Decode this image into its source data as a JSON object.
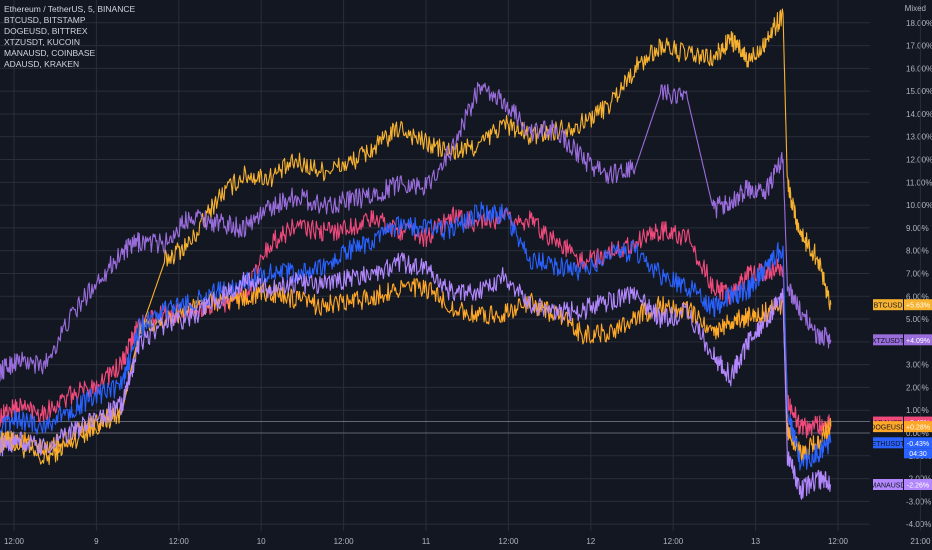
{
  "header": {
    "scale_mode": "Mixed",
    "symbols": [
      "Ethereum / TetherUS, 5, BINANCE",
      "BTCUSD, BITSTAMP",
      "DOGEUSD, BITTREX",
      "XTZUSDT, KUCOIN",
      "MANAUSD, COINBASE",
      "ADAUSD, KRAKEN"
    ]
  },
  "colors": {
    "background": "#131722",
    "grid": "#2a2e39",
    "axis_text": "#b2b5be",
    "crosshair": "#9598a1"
  },
  "chart_data": {
    "type": "line",
    "x_ticks": [
      "12:00",
      "9",
      "12:00",
      "10",
      "12:00",
      "11",
      "12:00",
      "12",
      "12:00",
      "13",
      "12:00",
      "21:00"
    ],
    "y_ticks": [
      "18.00%",
      "17.00%",
      "16.00%",
      "15.00%",
      "14.00%",
      "13.00%",
      "12.00%",
      "11.00%",
      "10.00%",
      "9.00%",
      "8.00%",
      "7.00%",
      "6.00%",
      "5.00%",
      "4.00%",
      "3.00%",
      "2.00%",
      "1.00%",
      "0.00%",
      "-1.00%",
      "-2.00%",
      "-3.00%",
      "-4.00%"
    ],
    "ylim": [
      -4.3,
      19
    ],
    "y_unit": "%",
    "grid": true,
    "series": [
      {
        "name": "BTCUSD",
        "color": "#f7b230",
        "last_label": "+5.63%",
        "x": [
          0,
          0.02,
          0.05,
          0.08,
          0.11,
          0.14,
          0.16,
          0.19,
          0.22,
          0.25,
          0.28,
          0.31,
          0.34,
          0.37,
          0.4,
          0.43,
          0.46,
          0.49,
          0.52,
          0.55,
          0.58,
          0.61,
          0.64,
          0.67,
          0.7,
          0.73,
          0.76,
          0.79,
          0.82,
          0.84,
          0.86,
          0.88,
          0.9,
          0.905,
          0.92,
          0.94,
          0.955
        ],
        "y": [
          -0.3,
          -0.5,
          -1.2,
          -0.4,
          0.3,
          0.9,
          4.3,
          7.6,
          8.4,
          10.3,
          11.3,
          11.2,
          11.9,
          11.5,
          11.8,
          12.5,
          13.4,
          12.7,
          12.3,
          12.6,
          13.6,
          13.0,
          13.3,
          13.6,
          14.4,
          16.0,
          17.0,
          16.6,
          16.4,
          17.3,
          16.3,
          17.2,
          18.4,
          11.0,
          8.7,
          7.7,
          5.63
        ]
      },
      {
        "name": "XTZUSDT",
        "color": "#9a6ddc",
        "last_label": "+4.09%",
        "x": [
          0,
          0.02,
          0.05,
          0.08,
          0.11,
          0.14,
          0.16,
          0.19,
          0.22,
          0.25,
          0.28,
          0.31,
          0.34,
          0.37,
          0.4,
          0.43,
          0.46,
          0.49,
          0.52,
          0.55,
          0.58,
          0.61,
          0.64,
          0.67,
          0.7,
          0.73,
          0.76,
          0.79,
          0.82,
          0.84,
          0.86,
          0.88,
          0.9,
          0.905,
          0.92,
          0.94,
          0.955
        ],
        "y": [
          2.7,
          3.2,
          2.9,
          5.0,
          6.6,
          7.9,
          8.4,
          8.3,
          9.6,
          9.2,
          9.0,
          9.9,
          10.4,
          10.0,
          10.2,
          10.4,
          11.0,
          10.8,
          12.5,
          15.1,
          14.5,
          13.2,
          13.3,
          12.0,
          11.3,
          11.6,
          15.0,
          14.7,
          9.8,
          10.2,
          10.7,
          10.6,
          12.0,
          6.5,
          5.3,
          4.3,
          4.09
        ]
      },
      {
        "name": "ADAUSD",
        "color": "#f04a7c",
        "last_label": "+0.48%",
        "x": [
          0,
          0.02,
          0.05,
          0.08,
          0.11,
          0.14,
          0.16,
          0.19,
          0.22,
          0.25,
          0.28,
          0.31,
          0.34,
          0.37,
          0.4,
          0.43,
          0.46,
          0.49,
          0.52,
          0.55,
          0.58,
          0.61,
          0.64,
          0.67,
          0.7,
          0.73,
          0.76,
          0.79,
          0.82,
          0.84,
          0.86,
          0.88,
          0.9,
          0.905,
          0.92,
          0.94,
          0.955
        ],
        "y": [
          0.7,
          1.2,
          0.9,
          1.6,
          2.1,
          3.0,
          4.8,
          5.2,
          5.4,
          5.6,
          6.0,
          8.3,
          9.1,
          8.8,
          9.0,
          9.4,
          8.9,
          8.6,
          9.5,
          9.2,
          9.4,
          9.3,
          8.4,
          7.5,
          7.9,
          8.4,
          8.9,
          8.6,
          6.4,
          6.0,
          6.9,
          7.1,
          7.3,
          1.5,
          0.2,
          0.3,
          0.48
        ]
      },
      {
        "name": "DOGEUSD",
        "color": "#ffa726",
        "last_label": "+0.28%",
        "x": [
          0,
          0.02,
          0.05,
          0.08,
          0.11,
          0.14,
          0.16,
          0.19,
          0.22,
          0.25,
          0.28,
          0.31,
          0.34,
          0.37,
          0.4,
          0.43,
          0.46,
          0.49,
          0.52,
          0.55,
          0.58,
          0.61,
          0.64,
          0.67,
          0.7,
          0.73,
          0.76,
          0.79,
          0.82,
          0.84,
          0.86,
          0.88,
          0.9,
          0.905,
          0.92,
          0.94,
          0.955
        ],
        "y": [
          -0.5,
          -0.2,
          -0.8,
          -0.2,
          0.4,
          1.0,
          4.4,
          5.0,
          5.5,
          5.8,
          5.9,
          6.2,
          5.8,
          5.6,
          5.7,
          6.0,
          6.4,
          6.3,
          5.5,
          5.1,
          5.3,
          5.7,
          5.2,
          4.3,
          4.4,
          5.1,
          5.6,
          5.4,
          4.5,
          4.9,
          5.1,
          5.3,
          5.7,
          0.2,
          -0.9,
          -0.4,
          0.28
        ]
      },
      {
        "name": "ETHUSDT",
        "color": "#2962ff",
        "last_label": "-0.43%",
        "x": [
          0,
          0.02,
          0.05,
          0.08,
          0.11,
          0.14,
          0.16,
          0.19,
          0.22,
          0.25,
          0.28,
          0.31,
          0.34,
          0.37,
          0.4,
          0.43,
          0.46,
          0.49,
          0.52,
          0.55,
          0.58,
          0.61,
          0.64,
          0.67,
          0.7,
          0.73,
          0.76,
          0.79,
          0.82,
          0.84,
          0.86,
          0.88,
          0.9,
          0.905,
          0.92,
          0.94,
          0.955
        ],
        "y": [
          0.2,
          0.6,
          0.3,
          1.0,
          1.6,
          2.1,
          4.6,
          5.4,
          5.7,
          6.2,
          6.6,
          7.1,
          7.0,
          7.2,
          8.0,
          8.4,
          9.1,
          9.0,
          8.9,
          9.7,
          9.6,
          7.6,
          7.3,
          7.1,
          7.8,
          8.0,
          6.9,
          6.4,
          5.5,
          6.0,
          6.3,
          7.2,
          8.2,
          1.0,
          -1.3,
          -0.9,
          -0.43
        ]
      },
      {
        "name": "MANAUSD",
        "color": "#b388ff",
        "last_label": "-2.26%",
        "x": [
          0,
          0.02,
          0.05,
          0.08,
          0.11,
          0.14,
          0.16,
          0.19,
          0.22,
          0.25,
          0.28,
          0.31,
          0.34,
          0.37,
          0.4,
          0.43,
          0.46,
          0.49,
          0.52,
          0.55,
          0.58,
          0.61,
          0.64,
          0.67,
          0.7,
          0.73,
          0.76,
          0.79,
          0.82,
          0.84,
          0.86,
          0.88,
          0.9,
          0.905,
          0.92,
          0.94,
          0.955
        ],
        "y": [
          -0.6,
          -0.3,
          -0.7,
          0.0,
          0.6,
          1.2,
          4.0,
          4.8,
          5.1,
          5.8,
          6.7,
          6.3,
          6.6,
          6.5,
          6.8,
          7.0,
          7.5,
          7.2,
          6.1,
          6.2,
          6.9,
          5.6,
          5.3,
          5.4,
          5.8,
          6.2,
          5.0,
          5.3,
          3.4,
          2.5,
          4.0,
          5.0,
          6.0,
          -1.0,
          -2.5,
          -2.0,
          -2.26
        ]
      }
    ],
    "price_tags": [
      {
        "name": "BTCUSD",
        "value_label": "+5.63%",
        "color": "#f7b230",
        "y": 5.63
      },
      {
        "name": "XTZUSDT",
        "value_label": "+4.09%",
        "color": "#9a6ddc",
        "y": 4.09
      },
      {
        "name": "ADAUSD",
        "value_label": "+0.48%",
        "color": "#f04a7c",
        "y": 0.48
      },
      {
        "name": "DOGEUSD",
        "value_label": "+0.28%",
        "color": "#ffa726",
        "y": 0.28
      },
      {
        "name": "ETHUSDT",
        "value_label": "-0.43%",
        "color": "#2962ff",
        "y": -0.43,
        "countdown": "04:30"
      },
      {
        "name": "MANAUSD",
        "value_label": "-2.26%",
        "color": "#b388ff",
        "y": -2.26
      }
    ]
  }
}
